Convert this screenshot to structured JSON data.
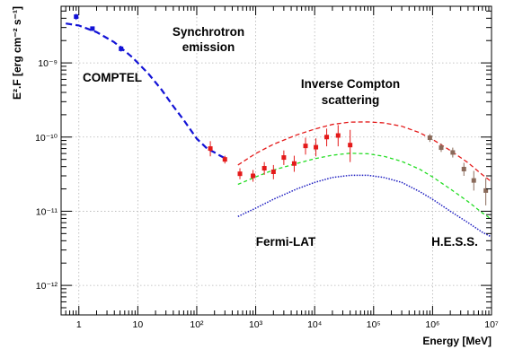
{
  "chart_data": {
    "type": "scatter",
    "title": "",
    "xlabel": "Energy [MeV]",
    "ylabel": "E².F [erg cm⁻² s⁻¹]",
    "x_scale": "log",
    "y_scale": "log",
    "xlim": [
      0.5,
      10000000
    ],
    "ylim": [
      4e-13,
      5.8e-09
    ],
    "grid": true,
    "x_ticks": [
      {
        "value": 1,
        "label": "1"
      },
      {
        "value": 10,
        "label": "10"
      },
      {
        "value": 100,
        "label": "10²"
      },
      {
        "value": 1000,
        "label": "10³"
      },
      {
        "value": 10000,
        "label": "10⁴"
      },
      {
        "value": 100000,
        "label": "10⁵"
      },
      {
        "value": 1000000,
        "label": "10⁶"
      },
      {
        "value": 10000000,
        "label": "10⁷"
      }
    ],
    "y_ticks": [
      {
        "value": 1e-12,
        "label": "10⁻¹²"
      },
      {
        "value": 1e-11,
        "label": "10⁻¹¹"
      },
      {
        "value": 1e-10,
        "label": "10⁻¹⁰"
      },
      {
        "value": 1e-09,
        "label": "10⁻⁹"
      }
    ],
    "annotations": [
      {
        "text": "COMPTEL",
        "color": "#1212d6"
      },
      {
        "text": "Synchrotron",
        "color": "#000000"
      },
      {
        "text": "emission",
        "color": "#000000"
      },
      {
        "text": "Inverse Compton",
        "color": "#000000"
      },
      {
        "text": "scattering",
        "color": "#000000"
      },
      {
        "text": "Fermi-LAT",
        "color": "#e41a1a"
      },
      {
        "text": "H.E.S.S.",
        "color": "#8a6a5a"
      }
    ],
    "series": [
      {
        "name": "COMPTEL",
        "kind": "points",
        "color": "#1212d6",
        "points": [
          {
            "x": 0.9,
            "y": 4.2e-09,
            "err_lo": 3.8e-09,
            "err_hi": 4.6e-09
          },
          {
            "x": 1.7,
            "y": 2.9e-09,
            "err_lo": 2.7e-09,
            "err_hi": 3.1e-09
          },
          {
            "x": 5.2,
            "y": 1.55e-09,
            "err_lo": 1.42e-09,
            "err_hi": 1.7e-09
          }
        ]
      },
      {
        "name": "Fermi-LAT",
        "kind": "points",
        "color": "#e41a1a",
        "points": [
          {
            "x": 170,
            "y": 7e-11,
            "err_lo": 5.5e-11,
            "err_hi": 8.8e-11
          },
          {
            "x": 300,
            "y": 5e-11,
            "err_lo": 4.4e-11,
            "err_hi": 5.6e-11
          },
          {
            "x": 540,
            "y": 3.2e-11,
            "err_lo": 2.7e-11,
            "err_hi": 3.8e-11
          },
          {
            "x": 900,
            "y": 3e-11,
            "err_lo": 2.5e-11,
            "err_hi": 3.6e-11
          },
          {
            "x": 1400,
            "y": 3.8e-11,
            "err_lo": 3.1e-11,
            "err_hi": 4.6e-11
          },
          {
            "x": 2000,
            "y": 3.4e-11,
            "err_lo": 2.7e-11,
            "err_hi": 4.2e-11
          },
          {
            "x": 3000,
            "y": 5.3e-11,
            "err_lo": 4.2e-11,
            "err_hi": 6.6e-11
          },
          {
            "x": 4500,
            "y": 4.4e-11,
            "err_lo": 3.4e-11,
            "err_hi": 5.6e-11
          },
          {
            "x": 7000,
            "y": 7.6e-11,
            "err_lo": 5.8e-11,
            "err_hi": 9.8e-11
          },
          {
            "x": 10500,
            "y": 7.3e-11,
            "err_lo": 5.5e-11,
            "err_hi": 9.6e-11
          },
          {
            "x": 16000,
            "y": 1e-10,
            "err_lo": 7.5e-11,
            "err_hi": 1.3e-10
          },
          {
            "x": 25000,
            "y": 1.05e-10,
            "err_lo": 7.5e-11,
            "err_hi": 1.45e-10
          },
          {
            "x": 40000,
            "y": 7.8e-11,
            "err_lo": 4.6e-11,
            "err_hi": 1.25e-10
          }
        ]
      },
      {
        "name": "H.E.S.S.",
        "kind": "points",
        "color": "#8a6a5a",
        "points": [
          {
            "x": 900000,
            "y": 9.8e-11,
            "err_lo": 8.6e-11,
            "err_hi": 1.1e-10
          },
          {
            "x": 1400000,
            "y": 7.2e-11,
            "err_lo": 6.3e-11,
            "err_hi": 8.2e-11
          },
          {
            "x": 2200000,
            "y": 6.2e-11,
            "err_lo": 5.3e-11,
            "err_hi": 7.2e-11
          },
          {
            "x": 3400000,
            "y": 3.7e-11,
            "err_lo": 3e-11,
            "err_hi": 4.5e-11
          },
          {
            "x": 5000000,
            "y": 2.6e-11,
            "err_lo": 1.9e-11,
            "err_hi": 3.5e-11
          },
          {
            "x": 8000000,
            "y": 1.9e-11,
            "err_lo": 1.2e-11,
            "err_hi": 2.8e-11
          }
        ]
      },
      {
        "name": "Synchrotron model",
        "kind": "curve",
        "color": "#1212d6",
        "dash": "7 4",
        "width": 2.2,
        "x": [
          0.6,
          1,
          2,
          4,
          8,
          15,
          25,
          40,
          60,
          100,
          150,
          200,
          250,
          300
        ],
        "y": [
          3.4e-09,
          3.2e-09,
          2.6e-09,
          1.9e-09,
          1.2e-09,
          7.2e-10,
          4.4e-10,
          2.6e-10,
          1.7e-10,
          9.5e-11,
          7e-11,
          6.2e-11,
          5.6e-11,
          5.2e-11
        ]
      },
      {
        "name": "Inverse Compton model (upper)",
        "kind": "curve",
        "color": "#e41a1a",
        "dash": "5 3",
        "width": 1.3,
        "x": [
          500,
          1000,
          2000,
          5000,
          10000,
          20000,
          40000,
          80000,
          150000,
          300000,
          600000,
          1000000,
          2000000,
          4000000,
          7000000,
          10000000
        ],
        "y": [
          4.2e-11,
          6e-11,
          8e-11,
          1.07e-10,
          1.28e-10,
          1.48e-10,
          1.59e-10,
          1.6e-10,
          1.55e-10,
          1.4e-10,
          1.15e-10,
          9.3e-11,
          6.6e-11,
          4.5e-11,
          3.1e-11,
          2.5e-11
        ]
      },
      {
        "name": "Inverse Compton model (middle)",
        "kind": "curve",
        "color": "#22dd22",
        "dash": "4 3",
        "width": 1.3,
        "x": [
          500,
          1000,
          2000,
          5000,
          10000,
          20000,
          40000,
          80000,
          150000,
          300000,
          600000,
          1000000,
          2000000,
          4000000,
          7000000,
          10000000
        ],
        "y": [
          2.3e-11,
          2.9e-11,
          3.6e-11,
          4.4e-11,
          5.1e-11,
          5.7e-11,
          6.05e-11,
          5.95e-11,
          5.5e-11,
          4.7e-11,
          3.7e-11,
          2.9e-11,
          2e-11,
          1.35e-11,
          9.5e-12,
          7.8e-12
        ]
      },
      {
        "name": "Inverse Compton model (lower)",
        "kind": "curve",
        "color": "#1c1cc0",
        "dash": "1.5 1.5",
        "width": 1.5,
        "x": [
          500,
          1000,
          2000,
          5000,
          10000,
          20000,
          40000,
          80000,
          150000,
          300000,
          600000,
          1000000,
          2000000,
          4000000,
          7000000,
          10000000
        ],
        "y": [
          8.5e-12,
          1.1e-11,
          1.45e-11,
          2e-11,
          2.45e-11,
          2.85e-11,
          3.05e-11,
          3.05e-11,
          2.85e-11,
          2.45e-11,
          1.85e-11,
          1.45e-11,
          1e-11,
          7e-12,
          5.2e-12,
          4.5e-12
        ]
      }
    ]
  }
}
